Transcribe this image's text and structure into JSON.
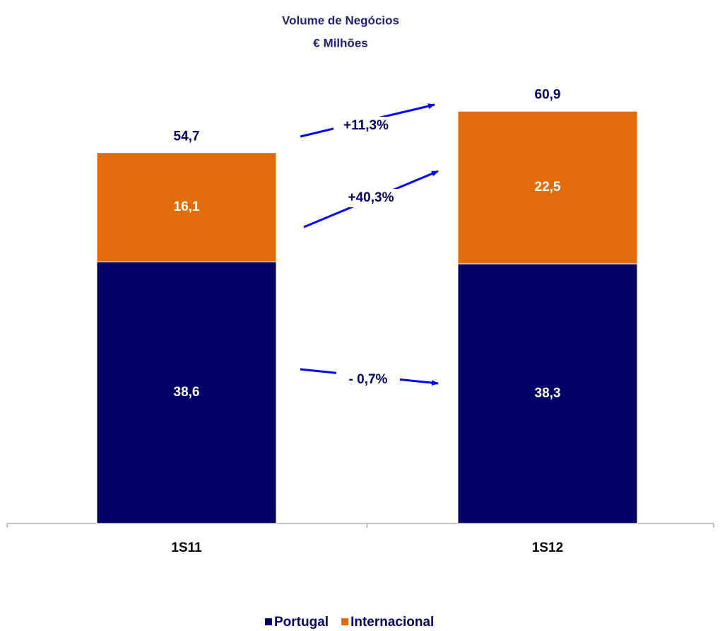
{
  "chart_data": {
    "type": "stacked_bar",
    "title": "Volume de Negócios",
    "subtitle": "€ Milhões",
    "categories": [
      "1S11",
      "1S12"
    ],
    "series": [
      {
        "name": "Portugal",
        "color": "#000066",
        "values": [
          38.6,
          38.3
        ],
        "value_labels": [
          "38,6",
          "38,3"
        ]
      },
      {
        "name": "Internacional",
        "color": "#e36c0a",
        "values": [
          16.1,
          22.5
        ],
        "value_labels": [
          "16,1",
          "22,5"
        ]
      }
    ],
    "totals": [
      54.7,
      60.9
    ],
    "total_labels": [
      "54,7",
      "60,9"
    ],
    "annotations": [
      "+11,3%",
      "+40,3%",
      "- 0,7%"
    ],
    "ylim": [
      0,
      65
    ],
    "legend": "bottom"
  }
}
